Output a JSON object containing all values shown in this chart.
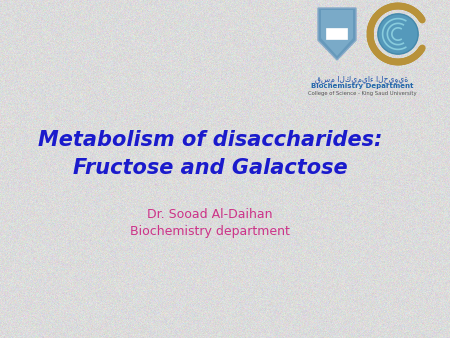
{
  "title_line1": "Metabolism of disaccharides:",
  "title_line2": "Fructose and Galactose",
  "subtitle_line1": "Dr. Sooad Al-Daihan",
  "subtitle_line2": "Biochemistry department",
  "title_color": "#1a1acc",
  "subtitle_color": "#cc3388",
  "bg_color": "#dcdcdc",
  "title_fontsize": 15,
  "subtitle_fontsize": 9,
  "logo_text_line1": "Biochemistry Department",
  "logo_text_line2": "College of Science - King Saud University",
  "logo_arabic": "قسم الكيمياء الحيوية",
  "logo_blue": "#5588bb",
  "logo_gold": "#b8923a",
  "logo_teal": "#44aacc"
}
